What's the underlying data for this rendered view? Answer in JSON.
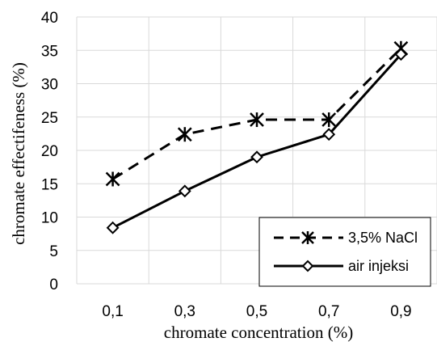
{
  "chart_data": {
    "type": "line",
    "x": [
      "0,1",
      "0,3",
      "0,5",
      "0,7",
      "0,9"
    ],
    "series": [
      {
        "name": "3,5% NaCl",
        "values": [
          15.7,
          22.4,
          24.6,
          24.6,
          35.3
        ],
        "line": "dashed",
        "marker": "asterisk",
        "color": "#000000"
      },
      {
        "name": "air injeksi",
        "values": [
          8.4,
          13.9,
          19.0,
          22.4,
          34.4
        ],
        "line": "solid",
        "marker": "diamond",
        "color": "#000000"
      }
    ],
    "xlabel": "chromate concentration (%)",
    "ylabel": "chromate effectifeness (%)",
    "ylim": [
      0,
      40
    ],
    "yticks": [
      0,
      5,
      10,
      15,
      20,
      25,
      30,
      35,
      40
    ],
    "grid": true,
    "legend_position": "bottom-right"
  }
}
